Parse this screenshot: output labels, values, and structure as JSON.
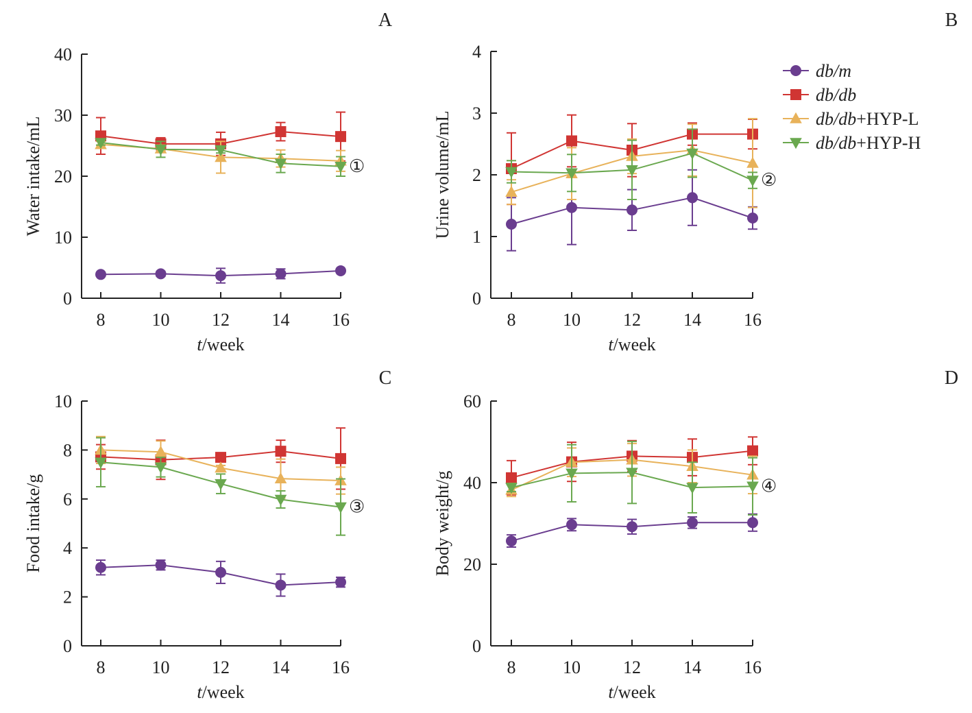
{
  "chart_data": [
    {
      "type": "line",
      "panel": "A",
      "title": "",
      "xlabel_italic": "t",
      "xlabel_rest": "/week",
      "ylabel": "Water intake/mL",
      "x": [
        8,
        10,
        12,
        14,
        16
      ],
      "xticks": [
        "8",
        "10",
        "12",
        "14",
        "16"
      ],
      "ylim": [
        0,
        40
      ],
      "yticks": [
        "0",
        "10",
        "20",
        "30",
        "40"
      ],
      "ytick_values": [
        0,
        10,
        20,
        30,
        40
      ],
      "annotation": "①",
      "annotation_series": 3,
      "series": [
        {
          "name": "db/m",
          "values": [
            3.9,
            4.0,
            3.7,
            4.0,
            4.5
          ],
          "err": [
            0.3,
            0.4,
            1.2,
            0.8,
            0.3
          ]
        },
        {
          "name": "db/db",
          "values": [
            26.6,
            25.3,
            25.3,
            27.3,
            26.5
          ],
          "err": [
            3.0,
            1.0,
            1.9,
            1.5,
            4.0
          ]
        },
        {
          "name": "db/db+HYP-L",
          "values": [
            25.2,
            24.5,
            23.1,
            22.9,
            22.5
          ],
          "err": [
            0.5,
            0.6,
            2.6,
            1.4,
            1.7
          ]
        },
        {
          "name": "db/db+HYP-H",
          "values": [
            25.5,
            24.4,
            24.3,
            22.1,
            21.6
          ],
          "err": [
            0.4,
            1.3,
            0.5,
            1.5,
            1.6
          ]
        }
      ]
    },
    {
      "type": "line",
      "panel": "B",
      "title": "",
      "xlabel_italic": "t",
      "xlabel_rest": "/week",
      "ylabel": "Urine volume/mL",
      "x": [
        8,
        10,
        12,
        14,
        16
      ],
      "xticks": [
        "8",
        "10",
        "12",
        "14",
        "16"
      ],
      "ylim": [
        0,
        4
      ],
      "yticks": [
        "0",
        "1",
        "2",
        "3",
        "4"
      ],
      "ytick_values": [
        0,
        1,
        2,
        3,
        4
      ],
      "annotation": "②",
      "annotation_series": 3,
      "series": [
        {
          "name": "db/m",
          "values": [
            1.2,
            1.47,
            1.43,
            1.63,
            1.3
          ],
          "err": [
            0.43,
            0.6,
            0.33,
            0.45,
            0.18
          ]
        },
        {
          "name": "db/db",
          "values": [
            2.1,
            2.55,
            2.4,
            2.66,
            2.66
          ],
          "err": [
            0.58,
            0.42,
            0.43,
            0.18,
            0.24
          ]
        },
        {
          "name": "db/db+HYP-L",
          "values": [
            1.72,
            2.02,
            2.3,
            2.4,
            2.19
          ],
          "err": [
            0.2,
            0.42,
            0.28,
            0.42,
            0.72
          ]
        },
        {
          "name": "db/db+HYP-H",
          "values": [
            2.05,
            2.03,
            2.08,
            2.35,
            1.91
          ],
          "err": [
            0.18,
            0.3,
            0.48,
            0.39,
            0.13
          ]
        }
      ]
    },
    {
      "type": "line",
      "panel": "C",
      "title": "",
      "xlabel_italic": "t",
      "xlabel_rest": "/week",
      "ylabel": "Food intake/g",
      "x": [
        8,
        10,
        12,
        14,
        16
      ],
      "xticks": [
        "8",
        "10",
        "12",
        "14",
        "16"
      ],
      "ylim": [
        0,
        10
      ],
      "yticks": [
        "0",
        "2",
        "4",
        "6",
        "8",
        "10"
      ],
      "ytick_values": [
        0,
        2,
        4,
        6,
        8,
        10
      ],
      "annotation": "③",
      "annotation_series": 3,
      "series": [
        {
          "name": "db/m",
          "values": [
            3.2,
            3.3,
            3.0,
            2.48,
            2.6
          ],
          "err": [
            0.3,
            0.2,
            0.45,
            0.45,
            0.2
          ]
        },
        {
          "name": "db/db",
          "values": [
            7.72,
            7.6,
            7.7,
            7.95,
            7.65
          ],
          "err": [
            0.5,
            0.8,
            0.1,
            0.45,
            1.25
          ]
        },
        {
          "name": "db/db+HYP-L",
          "values": [
            8.0,
            7.92,
            7.27,
            6.83,
            6.75
          ],
          "err": [
            0.55,
            0.45,
            0.1,
            0.8,
            0.55
          ]
        },
        {
          "name": "db/db+HYP-H",
          "values": [
            7.5,
            7.3,
            6.62,
            5.98,
            5.67
          ],
          "err": [
            1.0,
            0.4,
            0.4,
            0.35,
            1.15
          ]
        }
      ]
    },
    {
      "type": "line",
      "panel": "D",
      "title": "",
      "xlabel_italic": "t",
      "xlabel_rest": "/week",
      "ylabel": "Body weight/g",
      "x": [
        8,
        10,
        12,
        14,
        16
      ],
      "xticks": [
        "8",
        "10",
        "12",
        "14",
        "16"
      ],
      "ylim": [
        0,
        60
      ],
      "yticks": [
        "0",
        "20",
        "40",
        "60"
      ],
      "ytick_values": [
        0,
        20,
        40,
        60
      ],
      "annotation": "④",
      "annotation_series": 3,
      "series": [
        {
          "name": "db/m",
          "values": [
            25.7,
            29.7,
            29.2,
            30.2,
            30.2
          ],
          "err": [
            1.5,
            1.5,
            1.8,
            1.4,
            2.1
          ]
        },
        {
          "name": "db/db",
          "values": [
            41.2,
            45.1,
            46.5,
            46.2,
            47.8
          ],
          "err": [
            4.2,
            4.8,
            3.8,
            4.5,
            3.4
          ]
        },
        {
          "name": "db/db+HYP-L",
          "values": [
            38.2,
            45.0,
            45.6,
            44.0,
            41.9
          ],
          "err": [
            1.6,
            3.5,
            4.0,
            4.0,
            4.6
          ]
        },
        {
          "name": "db/db+HYP-H",
          "values": [
            38.8,
            42.3,
            42.5,
            38.8,
            39.1
          ],
          "err": [
            1.0,
            7.0,
            7.6,
            6.2,
            7.0
          ]
        }
      ]
    }
  ],
  "legend": {
    "items": [
      {
        "italic": "db/m",
        "rest": "",
        "color": "#6a3d8f",
        "marker": "circle"
      },
      {
        "italic": "db/db",
        "rest": "",
        "color": "#d03533",
        "marker": "square"
      },
      {
        "italic": "db/db",
        "rest": "+HYP-L",
        "color": "#e8b25a",
        "marker": "triangle-up"
      },
      {
        "italic": "db/db",
        "rest": "+HYP-H",
        "color": "#6aa84f",
        "marker": "triangle-down"
      }
    ]
  },
  "colors": {
    "series": [
      "#6a3d8f",
      "#d03533",
      "#e8b25a",
      "#6aa84f"
    ],
    "axis": "#222222"
  }
}
